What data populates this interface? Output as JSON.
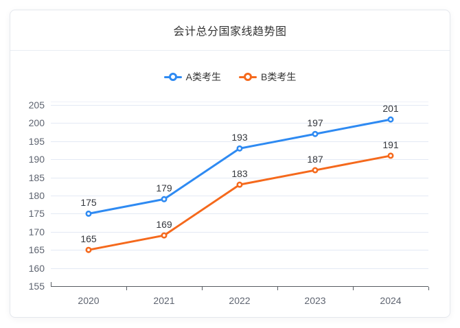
{
  "card": {
    "border_color": "#e4e7ed"
  },
  "chart_data": {
    "type": "line",
    "title": "会计总分国家线趋势图",
    "categories": [
      "2020",
      "2021",
      "2022",
      "2023",
      "2024"
    ],
    "series": [
      {
        "name": "A类考生",
        "color": "#2e8af2",
        "values": [
          175,
          179,
          193,
          197,
          201
        ]
      },
      {
        "name": "B类考生",
        "color": "#f5691c",
        "values": [
          165,
          169,
          183,
          187,
          191
        ]
      }
    ],
    "xlabel": "",
    "ylabel": "",
    "ylim": [
      155,
      205
    ],
    "ytick_step": 5,
    "grid": true,
    "legend_position": "top",
    "show_data_labels": true,
    "axis_color": "#565b61",
    "grid_color": "#e3e9f4",
    "tick_label_color": "#5e6470",
    "data_label_color": "#33363c"
  }
}
